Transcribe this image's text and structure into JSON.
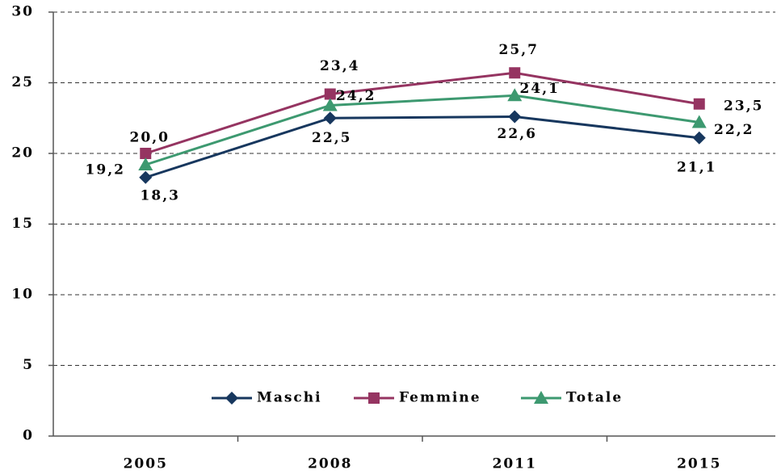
{
  "chart_data": {
    "type": "line",
    "categories": [
      "2005",
      "2008",
      "2011",
      "2015"
    ],
    "series": [
      {
        "name": "Maschi",
        "color": "#17375e",
        "marker": "diamond",
        "values": [
          18.3,
          22.5,
          22.6,
          21.1
        ],
        "value_labels": [
          "18,3",
          "22,5",
          "22,6",
          "21,1"
        ]
      },
      {
        "name": "Femmine",
        "color": "#953461",
        "marker": "square",
        "values": [
          20.0,
          24.2,
          25.7,
          23.5
        ],
        "value_labels": [
          "20,0",
          "24,2",
          "25,7",
          "23,5"
        ]
      },
      {
        "name": "Totale",
        "color": "#3d9970",
        "marker": "triangle",
        "values": [
          19.2,
          23.4,
          24.1,
          22.2
        ],
        "value_labels": [
          "19,2",
          "23,4",
          "24,1",
          "22,2"
        ]
      }
    ],
    "ylim": [
      0,
      30
    ],
    "yticks": [
      0,
      5,
      10,
      15,
      20,
      25,
      30
    ],
    "grid": true,
    "legend": "bottom"
  }
}
